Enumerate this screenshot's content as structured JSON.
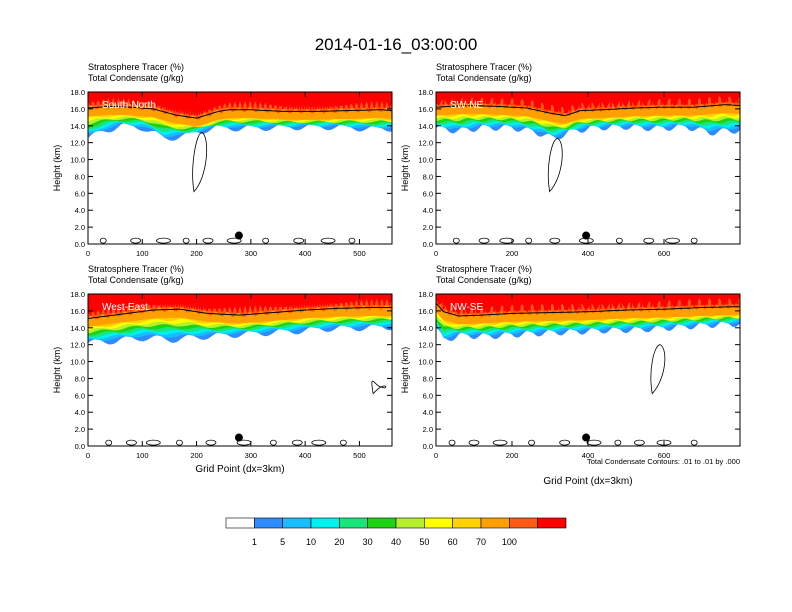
{
  "title": "2014-01-16_03:00:00",
  "contour_info": "Total Condensate Contours: .01 to .01 by .000",
  "shared_xlabel": "Grid Point (dx=3km)",
  "colorbar": {
    "levels": [
      "1",
      "5",
      "10",
      "20",
      "30",
      "40",
      "50",
      "60",
      "70",
      "100"
    ],
    "colors": [
      "#ffffff",
      "#2f8cff",
      "#19bcff",
      "#00f0f0",
      "#19e67a",
      "#1ed214",
      "#b4f02d",
      "#ffff00",
      "#ffd200",
      "#ffa000",
      "#ff5a14",
      "#ff0000"
    ]
  },
  "chart_data": [
    {
      "type": "contour",
      "panel_label": "South-North",
      "title_line1": "Stratosphere Tracer   (%)",
      "title_line2": "Total Condensate   (g/kg)",
      "ylabel": "Height (km)",
      "xlabel": "",
      "xlim": [
        0,
        560
      ],
      "ylim": [
        0,
        18
      ],
      "xticks": [
        0,
        100,
        200,
        300,
        400,
        500
      ],
      "yticks": [
        "0.0",
        "2.0",
        "4.0",
        "6.0",
        "8.0",
        "10.0",
        "12.0",
        "14.0",
        "16.0",
        "18.0"
      ],
      "marker_x": 278,
      "tropopause_profile": [
        [
          0,
          15.2
        ],
        [
          40,
          15.4
        ],
        [
          80,
          15.3
        ],
        [
          120,
          15.1
        ],
        [
          160,
          14.4
        ],
        [
          200,
          14.0
        ],
        [
          240,
          14.8
        ],
        [
          260,
          15.0
        ],
        [
          300,
          15.0
        ],
        [
          360,
          14.8
        ],
        [
          420,
          14.8
        ],
        [
          480,
          14.9
        ],
        [
          540,
          15.0
        ],
        [
          560,
          14.9
        ]
      ],
      "blue_base_profile": [
        [
          0,
          12.5
        ],
        [
          30,
          13.4
        ],
        [
          60,
          14.0
        ],
        [
          100,
          13.8
        ],
        [
          140,
          12.5
        ],
        [
          180,
          12.8
        ],
        [
          200,
          13.3
        ],
        [
          240,
          13.8
        ],
        [
          280,
          13.7
        ],
        [
          340,
          13.8
        ],
        [
          420,
          13.9
        ],
        [
          480,
          13.8
        ],
        [
          530,
          13.6
        ],
        [
          560,
          13.7
        ]
      ]
    },
    {
      "type": "contour",
      "panel_label": "SW-NE",
      "title_line1": "Stratosphere Tracer   (%)",
      "title_line2": "Total Condensate   (g/kg)",
      "ylabel": "Height (km)",
      "xlabel": "",
      "xlim": [
        0,
        800
      ],
      "ylim": [
        0,
        18
      ],
      "xticks": [
        0,
        200,
        400,
        600
      ],
      "yticks": [
        "0.0",
        "2.0",
        "4.0",
        "6.0",
        "8.0",
        "10.0",
        "12.0",
        "14.0",
        "16.0",
        "18.0"
      ],
      "marker_x": 395,
      "tropopause_profile": [
        [
          0,
          15.3
        ],
        [
          80,
          15.5
        ],
        [
          160,
          15.4
        ],
        [
          240,
          15.2
        ],
        [
          300,
          14.6
        ],
        [
          340,
          14.3
        ],
        [
          380,
          14.9
        ],
        [
          440,
          15.0
        ],
        [
          520,
          15.2
        ],
        [
          600,
          15.3
        ],
        [
          680,
          15.3
        ],
        [
          760,
          15.6
        ],
        [
          800,
          15.5
        ]
      ],
      "blue_base_profile": [
        [
          0,
          13.7
        ],
        [
          60,
          13.4
        ],
        [
          120,
          13.8
        ],
        [
          200,
          13.8
        ],
        [
          260,
          13.3
        ],
        [
          310,
          12.5
        ],
        [
          360,
          13.4
        ],
        [
          420,
          13.8
        ],
        [
          500,
          13.9
        ],
        [
          580,
          13.7
        ],
        [
          660,
          13.9
        ],
        [
          720,
          13.2
        ],
        [
          800,
          13.5
        ]
      ]
    },
    {
      "type": "contour",
      "panel_label": "West-East",
      "title_line1": "Stratosphere Tracer   (%)",
      "title_line2": "Total Condensate   (g/kg)",
      "ylabel": "Height (km)",
      "xlabel": "Grid Point (dx=3km)",
      "xlim": [
        0,
        560
      ],
      "ylim": [
        0,
        18
      ],
      "xticks": [
        0,
        100,
        200,
        300,
        400,
        500
      ],
      "yticks": [
        "0.0",
        "2.0",
        "4.0",
        "6.0",
        "8.0",
        "10.0",
        "12.0",
        "14.0",
        "16.0",
        "18.0"
      ],
      "marker_x": 278,
      "tropopause_profile": [
        [
          0,
          14.2
        ],
        [
          60,
          14.7
        ],
        [
          120,
          15.2
        ],
        [
          170,
          15.3
        ],
        [
          220,
          14.8
        ],
        [
          280,
          14.6
        ],
        [
          340,
          14.9
        ],
        [
          400,
          15.2
        ],
        [
          460,
          15.4
        ],
        [
          520,
          15.5
        ],
        [
          560,
          15.5
        ]
      ],
      "blue_base_profile": [
        [
          0,
          12.2
        ],
        [
          40,
          12.4
        ],
        [
          100,
          12.8
        ],
        [
          160,
          12.6
        ],
        [
          220,
          13.0
        ],
        [
          300,
          13.3
        ],
        [
          380,
          13.6
        ],
        [
          440,
          13.9
        ],
        [
          500,
          14.0
        ],
        [
          560,
          14.1
        ]
      ]
    },
    {
      "type": "contour",
      "panel_label": "NW-SE",
      "title_line1": "Stratosphere Tracer   (%)",
      "title_line2": "Total Condensate   (g/kg)",
      "ylabel": "Height (km)",
      "xlabel": "",
      "xlim": [
        0,
        800
      ],
      "ylim": [
        0,
        18
      ],
      "xticks": [
        0,
        200,
        400,
        600
      ],
      "yticks": [
        "0.0",
        "2.0",
        "4.0",
        "6.0",
        "8.0",
        "10.0",
        "12.0",
        "14.0",
        "16.0",
        "18.0"
      ],
      "marker_x": 395,
      "tropopause_profile": [
        [
          0,
          16.0
        ],
        [
          20,
          15.0
        ],
        [
          60,
          14.5
        ],
        [
          120,
          14.6
        ],
        [
          200,
          14.8
        ],
        [
          300,
          14.9
        ],
        [
          400,
          15.0
        ],
        [
          500,
          15.2
        ],
        [
          600,
          15.3
        ],
        [
          700,
          15.5
        ],
        [
          800,
          15.6
        ]
      ],
      "blue_base_profile": [
        [
          0,
          14.0
        ],
        [
          20,
          12.5
        ],
        [
          60,
          13.1
        ],
        [
          140,
          13.0
        ],
        [
          240,
          13.3
        ],
        [
          340,
          13.5
        ],
        [
          440,
          13.7
        ],
        [
          540,
          13.8
        ],
        [
          640,
          14.1
        ],
        [
          740,
          14.4
        ],
        [
          800,
          14.5
        ]
      ]
    }
  ]
}
